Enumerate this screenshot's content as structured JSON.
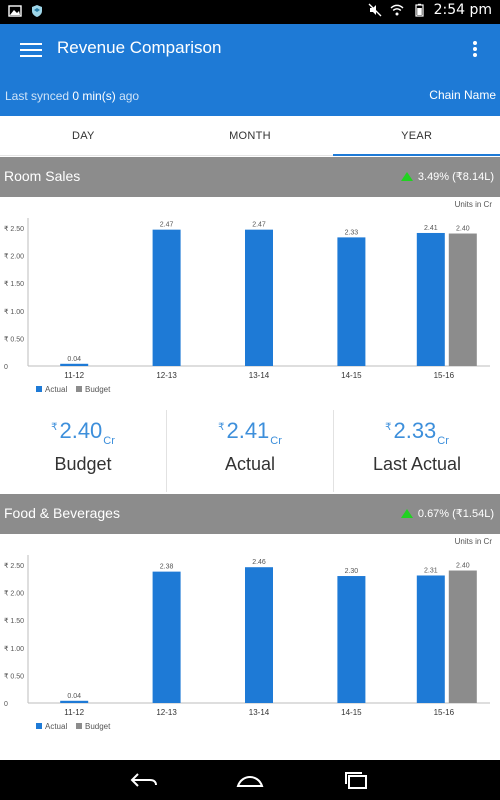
{
  "status_bar": {
    "time": "2:54 pm",
    "left_icons": [
      "image-icon",
      "shield-icon"
    ],
    "right_icons": [
      "mute-icon",
      "wifi-icon",
      "battery-icon"
    ]
  },
  "app_bar": {
    "title": "Revenue Comparison",
    "menu_icon": "hamburger-icon",
    "more_icon": "more-vert-icon"
  },
  "sync_bar": {
    "prefix": "Last synced",
    "value": "0 min(s)",
    "suffix": "ago",
    "chain_label": "Chain Name"
  },
  "tabs": [
    {
      "label": "DAY",
      "active": false
    },
    {
      "label": "MONTH",
      "active": false
    },
    {
      "label": "YEAR",
      "active": true
    }
  ],
  "colors": {
    "primary": "#1e7ad6",
    "actual": "#1e7ad6",
    "budget": "#8c8c8c",
    "positive": "#21d221"
  },
  "sections": [
    {
      "name": "Room Sales",
      "change": "3.49% (₹8.14L)",
      "units": "Units in Cr"
    },
    {
      "name": "Food & Beverages",
      "change": "0.67% (₹1.54L)",
      "units": "Units in Cr"
    }
  ],
  "kpis": [
    {
      "currency": "₹",
      "value": "2.40",
      "unit": "Cr",
      "label": "Budget"
    },
    {
      "currency": "₹",
      "value": "2.41",
      "unit": "Cr",
      "label": "Actual"
    },
    {
      "currency": "₹",
      "value": "2.33",
      "unit": "Cr",
      "label": "Last Actual"
    }
  ],
  "chart_data": [
    {
      "type": "bar",
      "categories": [
        "11-12",
        "12-13",
        "13-14",
        "14-15",
        "15-16"
      ],
      "series": [
        {
          "name": "Actual",
          "values": [
            0.04,
            2.47,
            2.47,
            2.33,
            2.41
          ]
        },
        {
          "name": "Budget",
          "values": [
            null,
            null,
            null,
            null,
            2.4
          ]
        }
      ],
      "ylim": [
        0,
        2.5
      ],
      "yticks": [
        "₹ 2.50",
        "₹ 2.00",
        "₹ 1.50",
        "₹ 1.00",
        "₹ 0.50",
        "0"
      ],
      "data_labels": [
        [
          "0.04",
          "2.47",
          "2.47",
          "2.33",
          "2.41"
        ],
        [
          "",
          "",
          "",
          "",
          "2.40"
        ]
      ],
      "legend": [
        "Actual",
        "Budget"
      ],
      "legend_position": "bottom-left"
    },
    {
      "type": "bar",
      "categories": [
        "11-12",
        "12-13",
        "13-14",
        "14-15",
        "15-16"
      ],
      "series": [
        {
          "name": "Actual",
          "values": [
            0.04,
            2.38,
            2.46,
            2.3,
            2.31
          ]
        },
        {
          "name": "Budget",
          "values": [
            null,
            null,
            null,
            null,
            2.4
          ]
        }
      ],
      "ylim": [
        0,
        2.5
      ],
      "yticks": [
        "₹ 2.50",
        "₹ 2.00",
        "₹ 1.50",
        "₹ 1.00",
        "₹ 0.50",
        "0"
      ],
      "data_labels": [
        [
          "0.04",
          "2.38",
          "2.46",
          "2.30",
          "2.31"
        ],
        [
          "",
          "",
          "",
          "",
          "2.40"
        ]
      ],
      "legend": [
        "Actual",
        "Budget"
      ],
      "legend_position": "bottom-left"
    }
  ],
  "nav_bar": {
    "icons": [
      "back-icon",
      "home-icon",
      "recents-icon"
    ]
  }
}
